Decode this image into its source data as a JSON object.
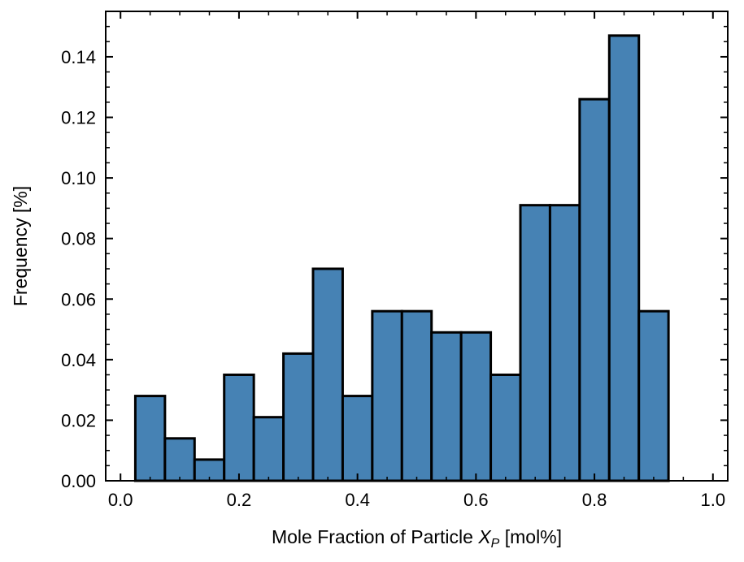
{
  "chart_data": {
    "type": "bar",
    "title": "",
    "xlabel": "Mole Fraction of Particle X_P [mol%]",
    "xlabel_parts": {
      "before": "Mole Fraction of Particle ",
      "symbol": "X",
      "subscript": "P",
      "after": " [mol%]"
    },
    "ylabel": "Frequency [%]",
    "xlim": [
      -0.025,
      1.025
    ],
    "ylim": [
      0,
      0.155
    ],
    "bin_edges": [
      0.025,
      0.075,
      0.125,
      0.175,
      0.225,
      0.275,
      0.325,
      0.375,
      0.425,
      0.475,
      0.525,
      0.575,
      0.625,
      0.675,
      0.725,
      0.775,
      0.825,
      0.875,
      0.925,
      0.975
    ],
    "values": [
      0.028,
      0.014,
      0.007,
      0.035,
      0.021,
      0.042,
      0.07,
      0.028,
      0.056,
      0.056,
      0.049,
      0.049,
      0.035,
      0.091,
      0.091,
      0.126,
      0.147,
      0.056,
      0.0
    ],
    "x_ticks": [
      "0.0",
      "0.2",
      "0.4",
      "0.6",
      "0.8",
      "1.0"
    ],
    "x_tick_values": [
      0.0,
      0.2,
      0.4,
      0.6,
      0.8,
      1.0
    ],
    "y_ticks": [
      "0.00",
      "0.02",
      "0.04",
      "0.06",
      "0.08",
      "0.10",
      "0.12",
      "0.14"
    ],
    "y_tick_values": [
      0.0,
      0.02,
      0.04,
      0.06,
      0.08,
      0.1,
      0.12,
      0.14
    ],
    "x_minor_step": 0.05,
    "y_minor_step": 0.005,
    "bar_color": "#4682b4",
    "edge_color": "#000000",
    "grid": false,
    "legend": "none"
  }
}
